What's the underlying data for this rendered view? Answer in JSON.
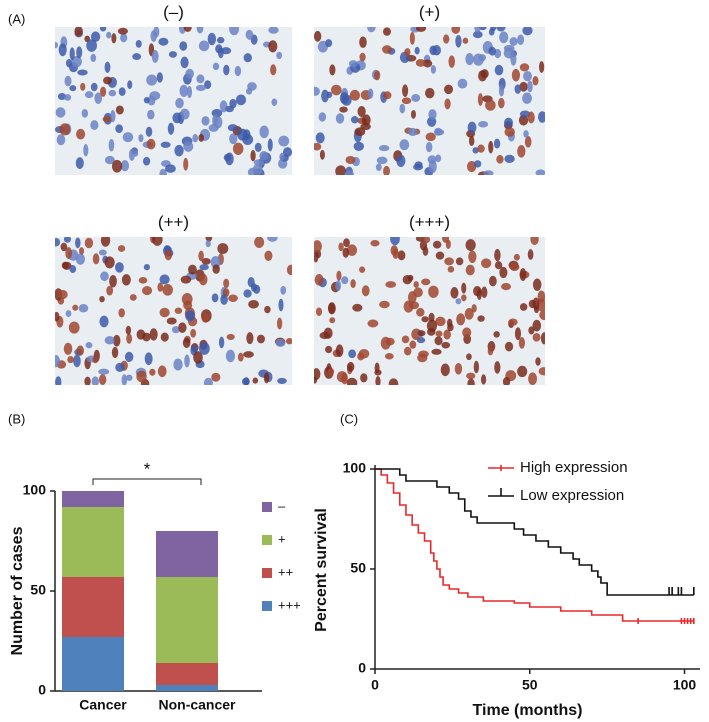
{
  "panels": [
    "(A)",
    "(B)",
    "(C)"
  ],
  "images": [
    {
      "label": "(–)"
    },
    {
      "label": "(+)"
    },
    {
      "label": "(++)"
    },
    {
      "label": "(+++)"
    }
  ],
  "chart_data": [
    {
      "type": "bar",
      "stacked": true,
      "categories": [
        "Cancer",
        "Non-cancer"
      ],
      "series": [
        {
          "name": "+++",
          "color": "#4f81bd",
          "values": [
            27,
            3
          ]
        },
        {
          "name": "++",
          "color": "#c0504d",
          "values": [
            30,
            11
          ]
        },
        {
          "name": "+",
          "color": "#9bbb59",
          "values": [
            35,
            43
          ]
        },
        {
          "name": "–",
          "color": "#8064a2",
          "values": [
            8,
            23
          ]
        }
      ],
      "y_label": "Number of cases",
      "ylim": [
        0,
        100
      ],
      "yticks": [
        0,
        50,
        100
      ],
      "annotation": "*",
      "legend": "right"
    },
    {
      "type": "line",
      "drawstyle": "steps-post",
      "series": [
        {
          "name": "High expression",
          "color": "#e8282b",
          "x": [
            0,
            2,
            4,
            6,
            8,
            10,
            12,
            14,
            16,
            18,
            19,
            20,
            21,
            22,
            24,
            27,
            30,
            35,
            45,
            50,
            60,
            70,
            80,
            103
          ],
          "values": [
            100,
            97,
            93,
            88,
            82,
            77,
            72,
            68,
            64,
            58,
            54,
            50,
            46,
            42,
            40,
            38,
            36,
            34,
            33,
            31,
            29,
            27,
            24,
            24
          ],
          "censored_x": [
            85,
            99,
            100,
            101,
            102,
            103
          ],
          "censored_values": [
            24,
            24,
            24,
            24,
            24,
            24
          ]
        },
        {
          "name": "Low expression",
          "color": "#111111",
          "x": [
            0,
            8,
            10,
            20,
            24,
            27,
            29,
            31,
            33,
            45,
            48,
            52,
            56,
            60,
            64,
            66,
            70,
            72,
            73,
            75,
            103
          ],
          "values": [
            100,
            97,
            94,
            91,
            88,
            85,
            79,
            76,
            73,
            70,
            67,
            64,
            61,
            58,
            55,
            52,
            49,
            46,
            43,
            37,
            37
          ],
          "censored_x": [
            95,
            96,
            98,
            99,
            103
          ],
          "censored_values": [
            37,
            37,
            37,
            37,
            37
          ]
        }
      ],
      "x_label": "Time (months)",
      "y_label": "Percent survival",
      "xlim": [
        0,
        105
      ],
      "xticks": [
        0,
        50,
        100
      ],
      "ylim": [
        0,
        100
      ],
      "yticks": [
        0,
        50,
        100
      ],
      "legend": "upper right"
    }
  ]
}
